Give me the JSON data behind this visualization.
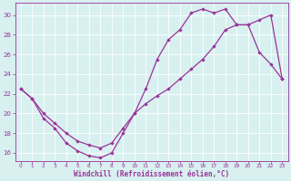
{
  "xlabel": "Windchill (Refroidissement éolien,°C)",
  "bg_color": "#d8f0f0",
  "line_color": "#993399",
  "xlim_min": -0.5,
  "xlim_max": 23.5,
  "ylim_min": 15.2,
  "ylim_max": 31.2,
  "yticks": [
    16,
    18,
    20,
    22,
    24,
    26,
    28,
    30
  ],
  "xticks": [
    0,
    1,
    2,
    3,
    4,
    5,
    6,
    7,
    8,
    9,
    10,
    11,
    12,
    13,
    14,
    15,
    16,
    17,
    18,
    19,
    20,
    21,
    22,
    23
  ],
  "series1_x": [
    0,
    1,
    2,
    3,
    4,
    5,
    6,
    7,
    8,
    9,
    10,
    11,
    12,
    13,
    14,
    15,
    16,
    17,
    18,
    19,
    20,
    21,
    22,
    23
  ],
  "series1_y": [
    22.5,
    21.5,
    19.5,
    18.5,
    17.0,
    16.2,
    15.7,
    15.5,
    16.0,
    18.0,
    20.0,
    22.5,
    25.5,
    27.5,
    28.5,
    30.2,
    30.6,
    30.2,
    30.6,
    29.0,
    29.0,
    26.2,
    25.0,
    23.5
  ],
  "series2_x": [
    0,
    1,
    2,
    3,
    4,
    5,
    6,
    7,
    8,
    9,
    10,
    11,
    12,
    13,
    14,
    15,
    16,
    17,
    18,
    19,
    20,
    21,
    22,
    23
  ],
  "series2_y": [
    22.5,
    21.5,
    20.0,
    19.0,
    18.0,
    17.2,
    16.8,
    16.5,
    17.0,
    18.5,
    20.0,
    21.0,
    21.8,
    22.5,
    23.5,
    24.5,
    25.5,
    26.8,
    28.5,
    29.0,
    29.0,
    29.5,
    30.0,
    23.5
  ]
}
